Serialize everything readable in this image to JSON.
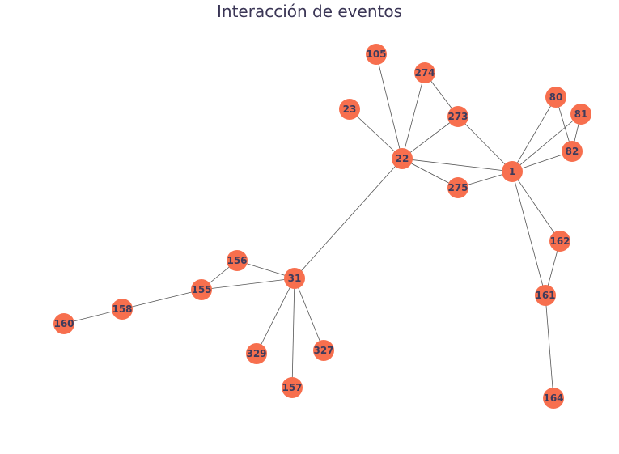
{
  "title": "Interacción de eventos",
  "colors": {
    "node_fill": "#f76f4e",
    "node_label": "#3d3b5c",
    "edge": "#555555",
    "title": "#3a3555"
  },
  "nodes": [
    "105",
    "274",
    "23",
    "273",
    "80",
    "81",
    "22",
    "82",
    "1",
    "275",
    "162",
    "156",
    "31",
    "155",
    "161",
    "158",
    "160",
    "327",
    "329",
    "157",
    "164"
  ],
  "edges": [
    [
      "105",
      "22"
    ],
    [
      "274",
      "22"
    ],
    [
      "274",
      "273"
    ],
    [
      "23",
      "22"
    ],
    [
      "273",
      "22"
    ],
    [
      "273",
      "1"
    ],
    [
      "22",
      "1"
    ],
    [
      "22",
      "275"
    ],
    [
      "275",
      "1"
    ],
    [
      "22",
      "31"
    ],
    [
      "80",
      "1"
    ],
    [
      "80",
      "82"
    ],
    [
      "81",
      "1"
    ],
    [
      "81",
      "82"
    ],
    [
      "82",
      "1"
    ],
    [
      "1",
      "162"
    ],
    [
      "1",
      "161"
    ],
    [
      "162",
      "161"
    ],
    [
      "161",
      "164"
    ],
    [
      "31",
      "156"
    ],
    [
      "31",
      "155"
    ],
    [
      "156",
      "155"
    ],
    [
      "155",
      "158"
    ],
    [
      "158",
      "160"
    ],
    [
      "31",
      "329"
    ],
    [
      "31",
      "327"
    ],
    [
      "31",
      "157"
    ]
  ]
}
